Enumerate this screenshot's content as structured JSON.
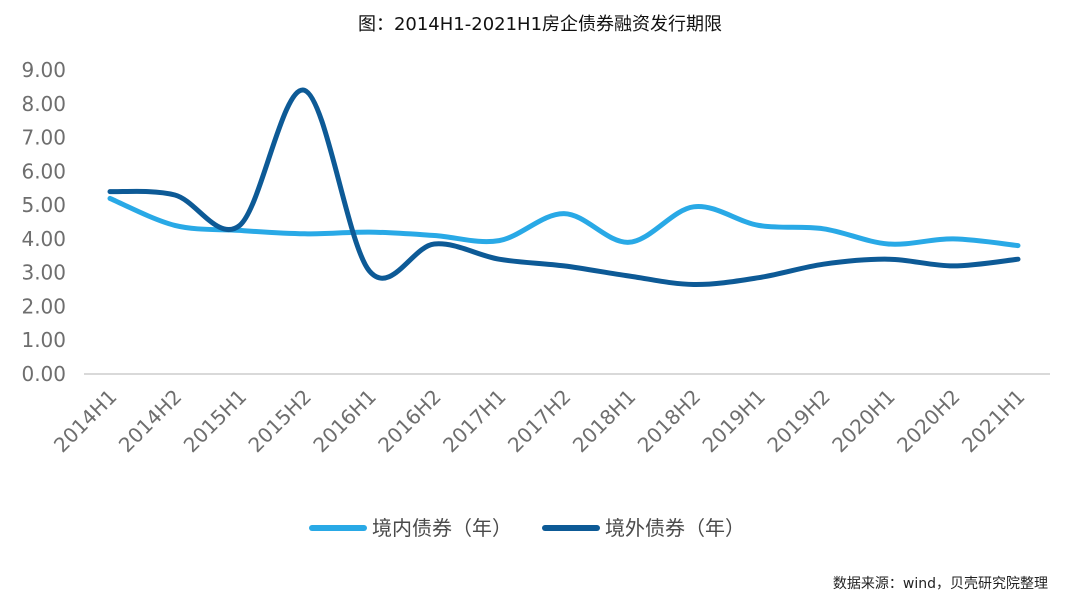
{
  "chart_data": {
    "type": "line",
    "title": "图：2014H1-2021H1房企债券融资发行期限",
    "source": "数据来源：wind，贝壳研究院整理",
    "categories": [
      "2014H1",
      "2014H2",
      "2015H1",
      "2015H2",
      "2016H1",
      "2016H2",
      "2017H1",
      "2017H2",
      "2018H1",
      "2018H2",
      "2019H1",
      "2019H2",
      "2020H1",
      "2020H2",
      "2021H1"
    ],
    "y_ticks": [
      "0.00",
      "1.00",
      "2.00",
      "3.00",
      "4.00",
      "5.00",
      "6.00",
      "7.00",
      "8.00",
      "9.00"
    ],
    "ylim": [
      0,
      9
    ],
    "grid": false,
    "legend_position": "bottom",
    "series": [
      {
        "name": "境内债券（年）",
        "color": "#29a9e6",
        "values": [
          5.2,
          4.4,
          4.25,
          4.15,
          4.2,
          4.1,
          3.95,
          4.75,
          3.9,
          4.95,
          4.4,
          4.3,
          3.85,
          4.0,
          3.8
        ]
      },
      {
        "name": "境外债券（年）",
        "color": "#0d5a96",
        "values": [
          5.4,
          5.3,
          4.4,
          8.4,
          3.05,
          3.85,
          3.4,
          3.2,
          2.9,
          2.65,
          2.85,
          3.25,
          3.4,
          3.2,
          3.4
        ]
      }
    ]
  }
}
